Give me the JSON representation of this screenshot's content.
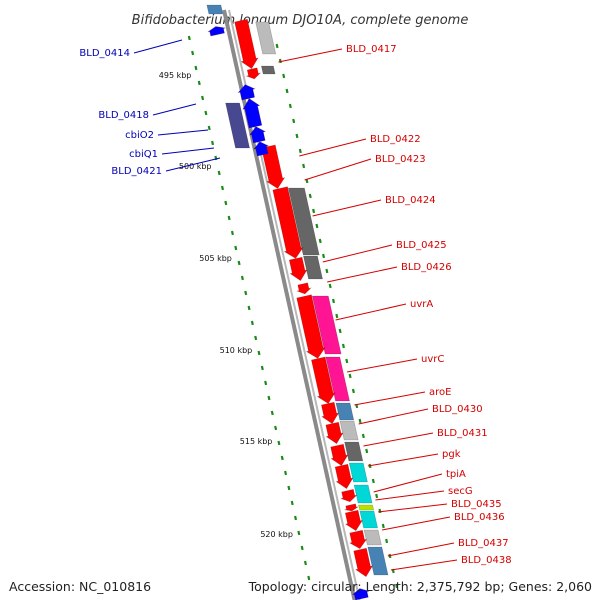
{
  "header": {
    "title": "Bifidobacterium longum DJO10A, complete genome"
  },
  "footer": {
    "accession": "Accession: NC_010816",
    "topology": "Topology: circular; Length: 2,375,792 bp; Genes: 2,060"
  },
  "scale": {
    "ticks": [
      "495 kbp",
      "500 kbp",
      "505 kbp",
      "510 kbp",
      "515 kbp",
      "520 kbp"
    ]
  },
  "genes": {
    "left": [
      "BLD_0414",
      "BLD_0418",
      "cbiO2",
      "cbiQ1",
      "BLD_0421"
    ],
    "right": [
      "BLD_0417",
      "BLD_0422",
      "BLD_0423",
      "BLD_0424",
      "BLD_0425",
      "BLD_0426",
      "uvrA",
      "uvrC",
      "aroE",
      "BLD_0430",
      "BLD_0431",
      "pgk",
      "tpiA",
      "secG",
      "BLD_0435",
      "BLD_0436",
      "BLD_0437",
      "BLD_0438"
    ]
  },
  "colors": {
    "forward_cds": "#ff0000",
    "reverse_cds": "#0000ff",
    "label_right": "#d40000",
    "label_left": "#0000b4",
    "backbone": "#8a8a8a",
    "tick_dots": "#1a8a1a",
    "cog_gray": "#666666",
    "cog_magenta": "#ff1493",
    "cog_steelblue": "#4682b4",
    "cog_cyan": "#00d8d8",
    "cog_lightgray": "#bbbbbb",
    "cog_purple": "#484890",
    "cog_yellowgreen": "#b8e000"
  }
}
